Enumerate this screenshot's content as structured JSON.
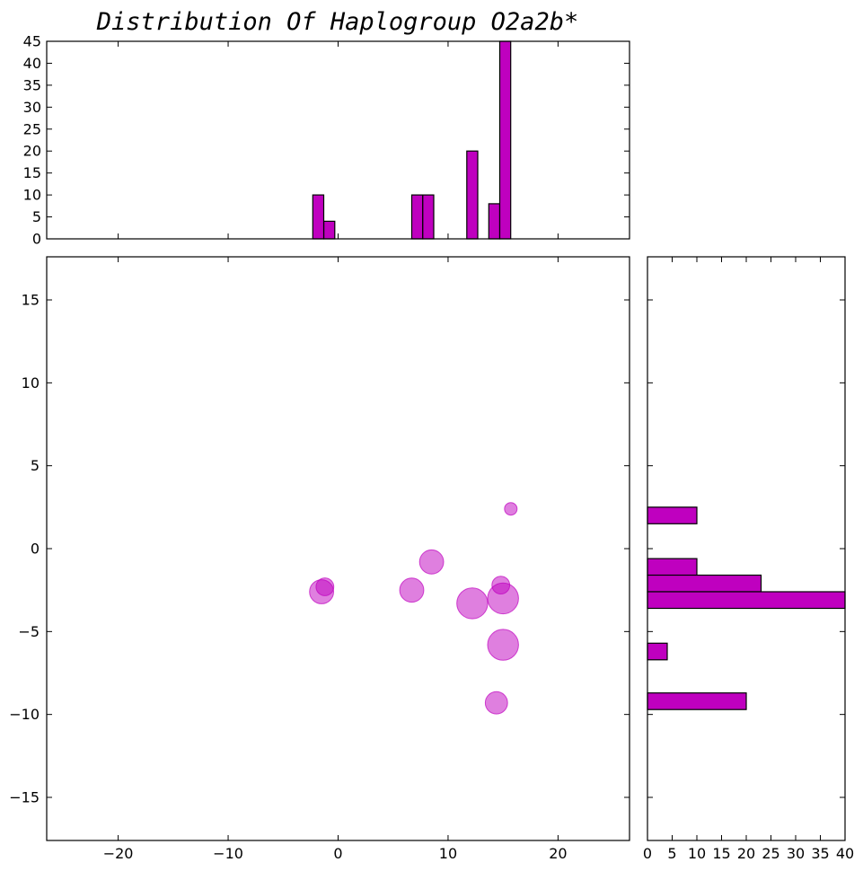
{
  "chart_data": [
    {
      "type": "bar",
      "name": "top-histogram",
      "title": "Distribution Of Haplogroup O2a2b*",
      "xlim": [
        -26.5,
        26.5
      ],
      "ylim": [
        0,
        45
      ],
      "yticks": [
        0,
        5,
        10,
        15,
        20,
        25,
        30,
        35,
        40,
        45
      ],
      "bin_width": 1.0,
      "bars": [
        {
          "x": -1.8,
          "value": 10
        },
        {
          "x": -0.8,
          "value": 4
        },
        {
          "x": 7.2,
          "value": 10
        },
        {
          "x": 8.2,
          "value": 10
        },
        {
          "x": 12.2,
          "value": 20
        },
        {
          "x": 14.2,
          "value": 8
        },
        {
          "x": 15.2,
          "value": 45
        }
      ]
    },
    {
      "type": "scatter",
      "name": "main-scatter",
      "xlim": [
        -26.5,
        26.5
      ],
      "ylim": [
        -17.6,
        17.6
      ],
      "xticks": [
        -20,
        -10,
        0,
        10,
        20
      ],
      "yticks": [
        -15,
        -10,
        -5,
        0,
        5,
        10,
        15
      ],
      "points": [
        {
          "x": -1.5,
          "y": -2.6,
          "size": 10
        },
        {
          "x": -1.2,
          "y": -2.3,
          "size": 4
        },
        {
          "x": 6.7,
          "y": -2.5,
          "size": 10
        },
        {
          "x": 8.5,
          "y": -0.8,
          "size": 10
        },
        {
          "x": 12.2,
          "y": -3.3,
          "size": 20
        },
        {
          "x": 14.4,
          "y": -9.3,
          "size": 8
        },
        {
          "x": 14.8,
          "y": -2.2,
          "size": 4
        },
        {
          "x": 15.0,
          "y": -3.0,
          "size": 20
        },
        {
          "x": 15.0,
          "y": -5.8,
          "size": 20
        },
        {
          "x": 15.7,
          "y": 2.4,
          "size": 1
        }
      ]
    },
    {
      "type": "bar",
      "orientation": "horizontal",
      "name": "right-histogram",
      "xlim": [
        0,
        40
      ],
      "xticks": [
        0,
        5,
        10,
        15,
        20,
        25,
        30,
        35,
        40
      ],
      "ylim": [
        -17.6,
        17.6
      ],
      "bin_height": 1.0,
      "bars": [
        {
          "y": 2.0,
          "value": 10
        },
        {
          "y": -1.1,
          "value": 10
        },
        {
          "y": -2.1,
          "value": 23
        },
        {
          "y": -3.1,
          "value": 40
        },
        {
          "y": -6.2,
          "value": 4
        },
        {
          "y": -9.2,
          "value": 20
        }
      ]
    }
  ]
}
